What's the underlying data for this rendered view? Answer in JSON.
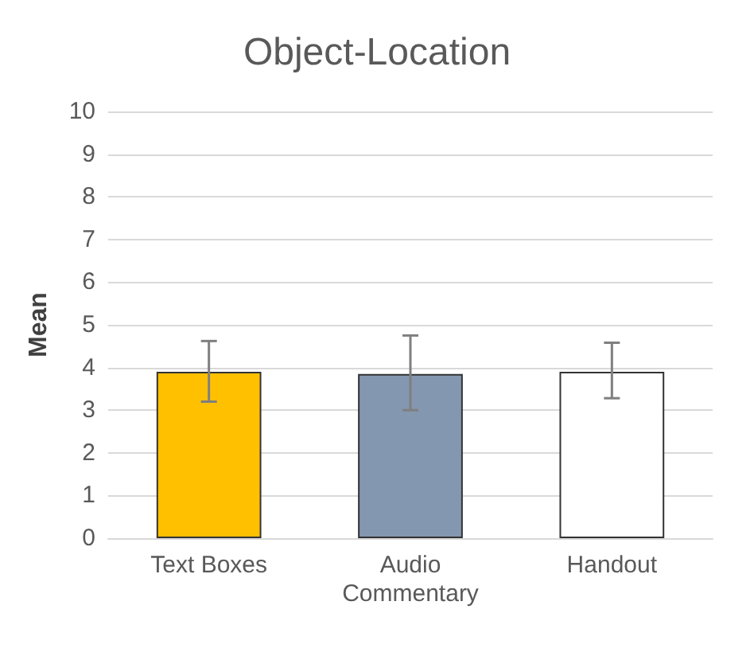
{
  "chart_data": {
    "type": "bar",
    "title": "Object-Location",
    "ylabel": "Mean",
    "categories": [
      "Text Boxes",
      "Audio\nCommentary",
      "Handout"
    ],
    "values": [
      3.9,
      3.85,
      3.9
    ],
    "colors": [
      "#ffc000",
      "#8497b0",
      "#ffffff"
    ],
    "errors": [
      [
        3.2,
        4.62
      ],
      [
        3.0,
        4.75
      ],
      [
        3.28,
        4.58
      ]
    ],
    "ylim": [
      0,
      10
    ],
    "yticks": [
      0,
      1,
      2,
      3,
      4,
      5,
      6,
      7,
      8,
      9,
      10
    ],
    "grid": "y"
  }
}
